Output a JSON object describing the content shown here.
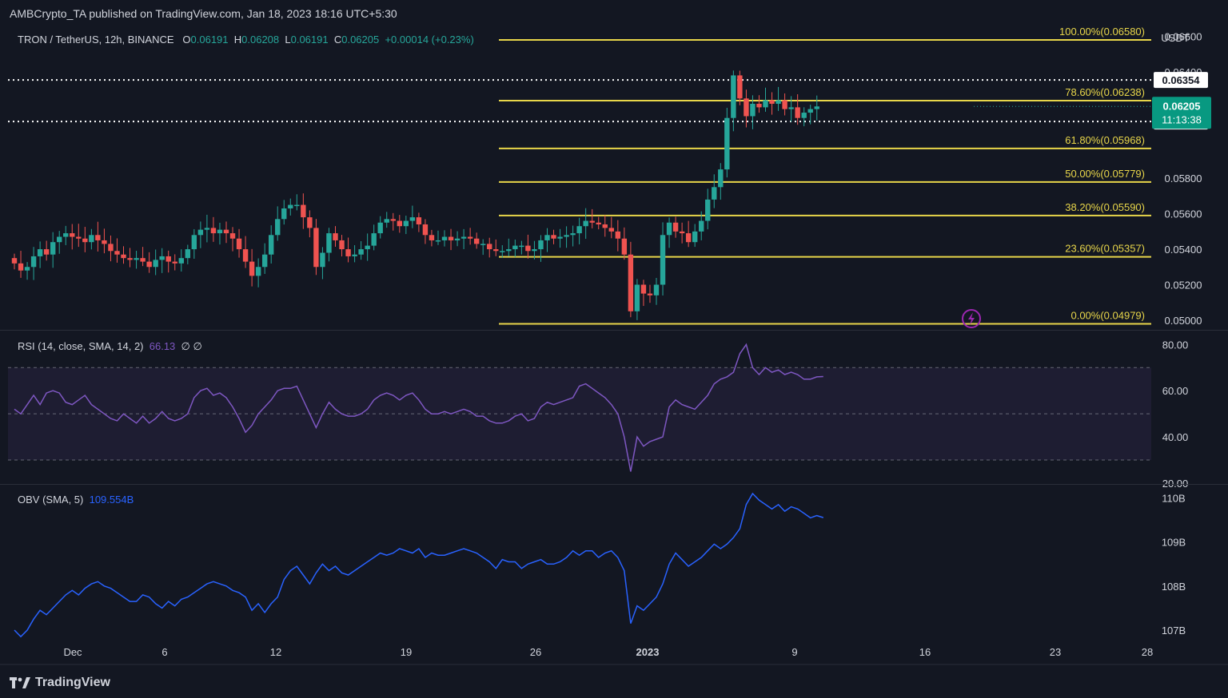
{
  "header": {
    "publisher": "AMBCrypto_TA published on TradingView.com, Jan 18, 2023 18:16 UTC+5:30"
  },
  "price_pane": {
    "legend": {
      "symbol": "TRON / TetherUS, 12h, BINANCE",
      "o_label": "O",
      "o": "0.06191",
      "h_label": "H",
      "h": "0.06208",
      "l_label": "L",
      "l": "0.06191",
      "c_label": "C",
      "c": "0.06205",
      "change": "+0.00014 (+0.23%)"
    },
    "currency": "USDT",
    "last_price": "0.06205",
    "countdown": "11:13:38",
    "dotted_levels": [
      "0.06354",
      "0.06120"
    ]
  },
  "rsi_pane": {
    "label": "RSI (14, close, SMA, 14, 2)",
    "value": "66.13",
    "extra": "∅  ∅"
  },
  "obv_pane": {
    "label": "OBV (SMA, 5)",
    "value": "109.554B"
  },
  "footer": {
    "brand": "TradingView"
  },
  "chart_data": [
    {
      "type": "candlestick",
      "title": "TRON / TetherUS, 12h, BINANCE",
      "ylim": [
        0.0495,
        0.0667
      ],
      "y_ticks": [
        "0.06600",
        "0.06400",
        "0.05800",
        "0.05600",
        "0.05400",
        "0.05200",
        "0.05000"
      ],
      "x_ticks": [
        "Dec",
        "6",
        "12",
        "19",
        "26",
        "2023",
        "9",
        "16",
        "23",
        "28"
      ],
      "fib_levels": [
        {
          "label": "100.00%(0.06580)",
          "value": 0.0658
        },
        {
          "label": "78.60%(0.06238)",
          "value": 0.06238
        },
        {
          "label": "61.80%(0.05968)",
          "value": 0.05968
        },
        {
          "label": "50.00%(0.05779)",
          "value": 0.05779
        },
        {
          "label": "38.20%(0.05590)",
          "value": 0.0559
        },
        {
          "label": "23.60%(0.05357)",
          "value": 0.05357
        },
        {
          "label": "0.00%(0.04979)",
          "value": 0.04979
        }
      ],
      "dotted_lines": [
        0.06354,
        0.0612
      ],
      "closes": [
        0.0532,
        0.0528,
        0.053,
        0.0536,
        0.054,
        0.0537,
        0.0544,
        0.0547,
        0.0549,
        0.0547,
        0.0546,
        0.0544,
        0.0548,
        0.0545,
        0.0543,
        0.0539,
        0.0537,
        0.0535,
        0.0534,
        0.0535,
        0.0533,
        0.053,
        0.0534,
        0.0536,
        0.0533,
        0.0532,
        0.0535,
        0.054,
        0.0548,
        0.0551,
        0.0552,
        0.0549,
        0.0551,
        0.0549,
        0.0546,
        0.054,
        0.0533,
        0.0525,
        0.053,
        0.0537,
        0.0548,
        0.0557,
        0.0563,
        0.0565,
        0.0565,
        0.0558,
        0.0552,
        0.053,
        0.0538,
        0.0549,
        0.0545,
        0.054,
        0.0536,
        0.0537,
        0.054,
        0.0542,
        0.0549,
        0.0555,
        0.0557,
        0.0556,
        0.0553,
        0.0556,
        0.0558,
        0.0554,
        0.0548,
        0.0545,
        0.0545,
        0.0547,
        0.0545,
        0.0546,
        0.0547,
        0.0546,
        0.0543,
        0.0543,
        0.054,
        0.0539,
        0.0539,
        0.054,
        0.0542,
        0.0542,
        0.0539,
        0.054,
        0.0545,
        0.0548,
        0.0546,
        0.0547,
        0.0548,
        0.0549,
        0.0553,
        0.0556,
        0.0555,
        0.0554,
        0.0552,
        0.055,
        0.0546,
        0.0537,
        0.0505,
        0.052,
        0.0515,
        0.0514,
        0.052,
        0.0548,
        0.0555,
        0.055,
        0.0549,
        0.0544,
        0.055,
        0.0556,
        0.0568,
        0.0575,
        0.0585,
        0.0614,
        0.0638,
        0.0625,
        0.0615,
        0.0622,
        0.062,
        0.0624,
        0.0622,
        0.0624,
        0.0619,
        0.062,
        0.0614,
        0.0617,
        0.0619,
        0.06205
      ]
    },
    {
      "type": "line",
      "title": "RSI (14, close, SMA, 14, 2)",
      "ylim": [
        20,
        86
      ],
      "y_ticks": [
        "80.00",
        "60.00",
        "40.00",
        "20.00"
      ],
      "bands": [
        30,
        50,
        70
      ],
      "values": [
        52,
        50,
        54,
        58,
        54,
        59,
        60,
        59,
        55,
        54,
        56,
        58,
        54,
        52,
        50,
        48,
        47,
        50,
        48,
        46,
        49,
        46,
        48,
        51,
        48,
        47,
        48,
        50,
        57,
        60,
        61,
        58,
        59,
        57,
        53,
        48,
        42,
        45,
        50,
        53,
        56,
        60,
        61,
        61,
        62,
        56,
        50,
        44,
        50,
        55,
        52,
        50,
        49,
        49,
        50,
        52,
        56,
        58,
        59,
        58,
        56,
        58,
        59,
        56,
        52,
        50,
        50,
        51,
        50,
        51,
        52,
        51,
        49,
        49,
        47,
        46,
        46,
        47,
        49,
        50,
        47,
        48,
        53,
        55,
        54,
        55,
        56,
        57,
        62,
        63,
        61,
        59,
        57,
        54,
        50,
        40,
        25,
        40,
        36,
        38,
        39,
        40,
        53,
        56,
        54,
        53,
        52,
        55,
        58,
        63,
        65,
        66,
        68,
        76,
        80,
        70,
        67,
        70,
        68,
        69,
        67,
        68,
        67,
        65,
        65,
        66,
        66.13
      ]
    },
    {
      "type": "line",
      "title": "OBV (SMA, 5)",
      "ylim": [
        106.8,
        110.3
      ],
      "y_ticks": [
        "110B",
        "109B",
        "108B",
        "107B"
      ],
      "values": [
        107.0,
        106.85,
        107.0,
        107.25,
        107.45,
        107.35,
        107.5,
        107.65,
        107.8,
        107.9,
        107.8,
        107.95,
        108.05,
        108.1,
        108.0,
        107.95,
        107.85,
        107.75,
        107.65,
        107.65,
        107.8,
        107.75,
        107.6,
        107.5,
        107.65,
        107.55,
        107.7,
        107.75,
        107.85,
        107.95,
        108.05,
        108.1,
        108.05,
        108.0,
        107.9,
        107.85,
        107.75,
        107.45,
        107.6,
        107.4,
        107.6,
        107.75,
        108.15,
        108.35,
        108.45,
        108.25,
        108.05,
        108.3,
        108.5,
        108.35,
        108.45,
        108.3,
        108.25,
        108.35,
        108.45,
        108.55,
        108.65,
        108.75,
        108.7,
        108.75,
        108.85,
        108.8,
        108.75,
        108.85,
        108.65,
        108.75,
        108.7,
        108.7,
        108.75,
        108.8,
        108.85,
        108.8,
        108.75,
        108.65,
        108.55,
        108.4,
        108.6,
        108.55,
        108.55,
        108.4,
        108.5,
        108.55,
        108.6,
        108.5,
        108.5,
        108.55,
        108.65,
        108.8,
        108.7,
        108.8,
        108.8,
        108.65,
        108.75,
        108.8,
        108.65,
        108.35,
        107.15,
        107.55,
        107.45,
        107.6,
        107.75,
        108.05,
        108.5,
        108.75,
        108.6,
        108.45,
        108.55,
        108.65,
        108.8,
        108.95,
        108.85,
        108.95,
        109.1,
        109.3,
        109.85,
        110.1,
        109.95,
        109.85,
        109.75,
        109.85,
        109.7,
        109.8,
        109.75,
        109.65,
        109.55,
        109.6,
        109.554
      ]
    }
  ]
}
